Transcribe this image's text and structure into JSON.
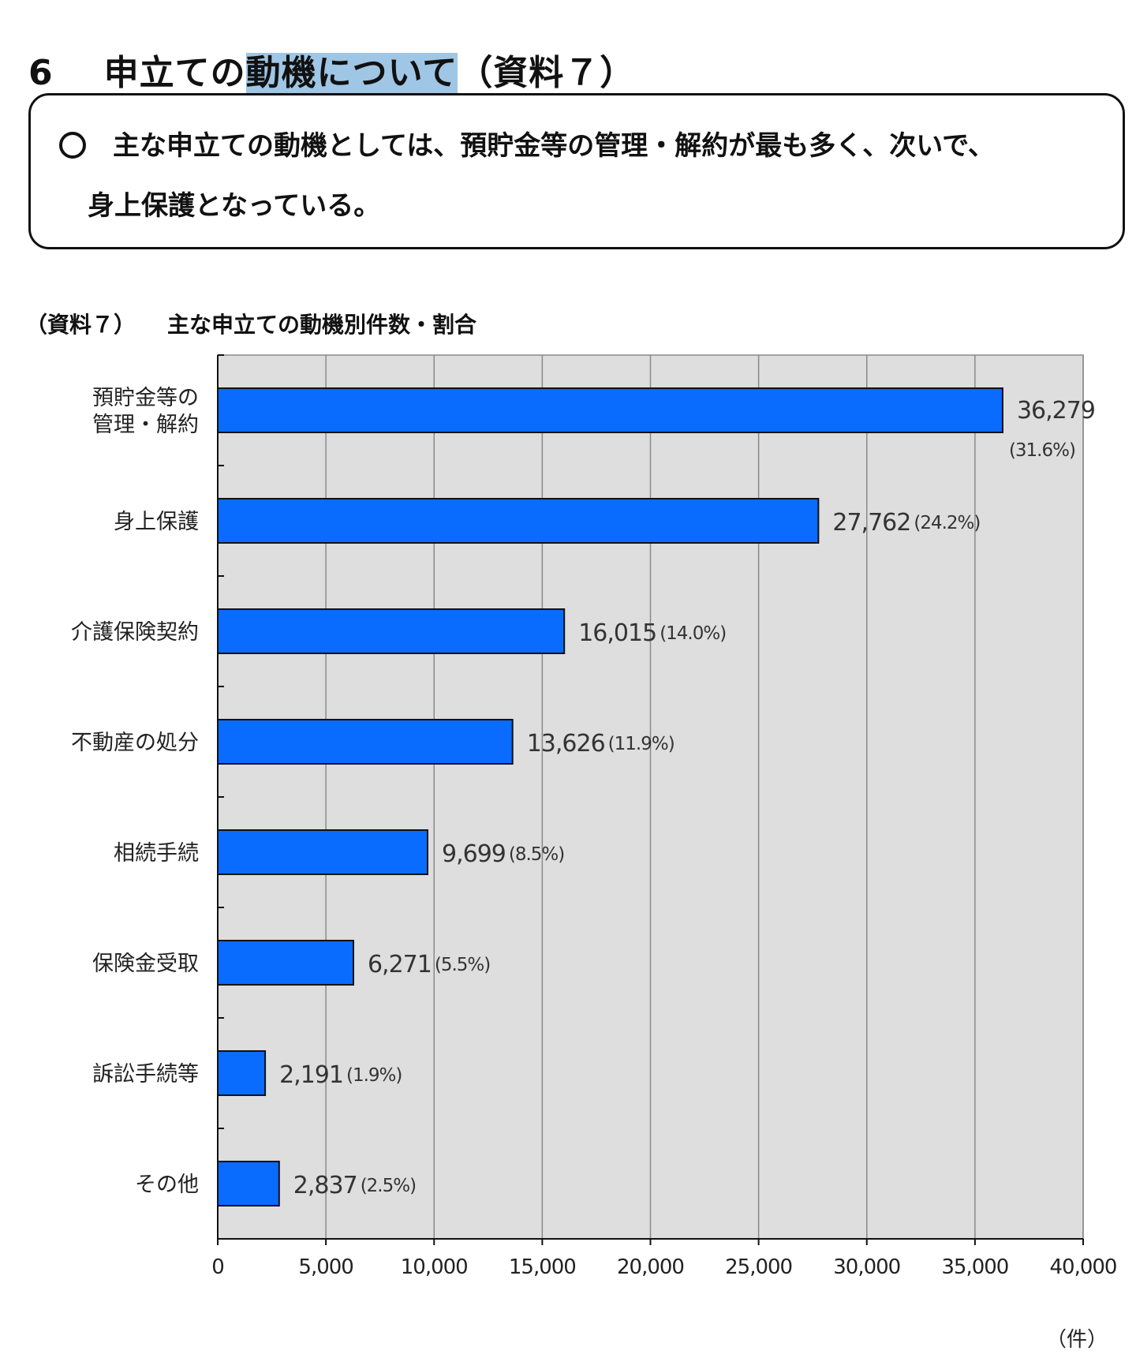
{
  "page": {
    "section_number": "6",
    "section_title_pre": "申立ての",
    "section_title_highlight": "動機について",
    "section_title_post": "（資料７）",
    "summary_line1": "主な申立ての動機としては、預貯金等の管理・解約が最も多く、次いで、",
    "summary_line2": "身上保護となっている。",
    "chart_caption_ref": "（資料７）",
    "chart_caption_title": "主な申立ての動機別件数・割合",
    "highlight_color": "#9fc6e4"
  },
  "chart_data": {
    "type": "bar",
    "orientation": "horizontal",
    "categories": [
      [
        "預貯金等の",
        "管理・解約"
      ],
      [
        "身上保護"
      ],
      [
        "介護保険契約"
      ],
      [
        "不動産の処分"
      ],
      [
        "相続手続"
      ],
      [
        "保険金受取"
      ],
      [
        "訴訟手続等"
      ],
      [
        "その他"
      ]
    ],
    "values": [
      36279,
      27762,
      16015,
      13626,
      9699,
      6271,
      2191,
      2837
    ],
    "value_labels": [
      "36,279",
      "27,762",
      "16,015",
      "13,626",
      "9,699",
      "6,271",
      "2,191",
      "2,837"
    ],
    "percent_labels": [
      "(31.6%)",
      "(24.2%)",
      "(14.0%)",
      "(11.9%)",
      "(8.5%)",
      "(5.5%)",
      "(1.9%)",
      "(2.5%)"
    ],
    "x_ticks": [
      0,
      5000,
      10000,
      15000,
      20000,
      25000,
      30000,
      35000,
      40000
    ],
    "x_tick_labels": [
      "0",
      "5,000",
      "10,000",
      "15,000",
      "20,000",
      "25,000",
      "30,000",
      "35,000",
      "40,000"
    ],
    "xlim": [
      0,
      40000
    ],
    "unit_label": "（件）",
    "grid": true,
    "bar_color": "#0a6bff",
    "plot_background": "#dedede",
    "grid_color": "#8a8a8a"
  }
}
